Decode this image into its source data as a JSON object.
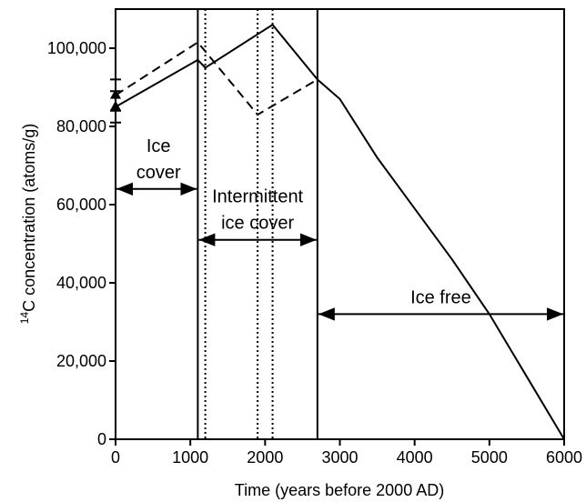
{
  "chart_data": {
    "type": "line",
    "xlabel": "Time (years before 2000 AD)",
    "ylabel_sup": "14",
    "ylabel": "C concentration (atoms/g)",
    "xlim": [
      0,
      6000
    ],
    "xticks": [
      0,
      1000,
      2000,
      3000,
      4000,
      5000,
      6000
    ],
    "ylim": [
      0,
      110000
    ],
    "yticks": [
      0,
      {
        "value": 20000,
        "label": "20,000"
      },
      {
        "value": 40000,
        "label": "40,000"
      },
      {
        "value": 60000,
        "label": "60,000"
      },
      {
        "value": 80000,
        "label": "80,000"
      },
      {
        "value": 100000,
        "label": "100,000"
      }
    ],
    "series": [
      {
        "style": "solid",
        "color": "#000000",
        "x": [
          0,
          1100,
          1200,
          2100,
          2700,
          3000,
          3500,
          4000,
          4500,
          5000,
          5500,
          6000
        ],
        "values": [
          85000,
          97000,
          95000,
          106000,
          92000,
          87000,
          72000,
          59000,
          46000,
          32000,
          16000,
          0
        ]
      },
      {
        "style": "dashed",
        "color": "#000000",
        "x": [
          0,
          1100,
          1900,
          2700
        ],
        "values": [
          88000,
          101500,
          83000,
          92000
        ]
      }
    ],
    "start_points": {
      "x": [
        0,
        0
      ],
      "values": [
        85000,
        88000
      ],
      "errors": [
        4000,
        4000
      ]
    },
    "solid_lines": [
      1100,
      2700
    ],
    "dotted_lines": [
      1200,
      1900,
      2100
    ],
    "periods": [
      {
        "lines": [
          "Ice",
          "cover"
        ],
        "start": 0,
        "end": 1100,
        "y": 64000
      },
      {
        "lines": [
          "Intermittent",
          "ice cover"
        ],
        "start": 1100,
        "end": 2700,
        "y": 51000
      },
      {
        "lines": [
          "Ice free"
        ],
        "start": 2700,
        "end": 6000,
        "y": 32000
      }
    ]
  }
}
